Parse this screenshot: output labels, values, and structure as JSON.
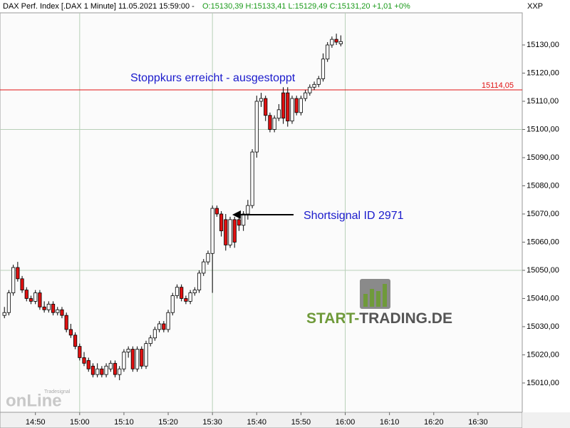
{
  "chart_data": {
    "type": "candlestick",
    "title": "DAX Perf. Index [.DAX  1 Minute] 11.05.2021 15:59:00 -",
    "subtitle": "O:15130,39 H:15133,41 L:15129,49 C:15131,20 +1,01 +0%",
    "y_label": "XXP",
    "up_color": "#ffffff",
    "down_color": "#e01010",
    "reference_line": {
      "value": 15114.05,
      "label": "15114,05",
      "color": "#e01010"
    },
    "annotations": [
      "Stoppkurs erreicht - ausgestoppt",
      "Shortsignal ID 2971"
    ],
    "watermarks": [
      "START-",
      "TRADING.DE",
      "Tradesignal",
      "onLine"
    ],
    "xlim": [
      "14:42",
      "16:40"
    ],
    "xticks": [
      "14:50",
      "15:00",
      "15:10",
      "15:20",
      "15:30",
      "15:40",
      "15:50",
      "16:00",
      "16:10",
      "16:20",
      "16:30"
    ],
    "x_grid": [
      "15:00",
      "15:30",
      "16:00"
    ],
    "ylim": [
      14999.6,
      15141.4
    ],
    "yticks": [
      {
        "value": 15010,
        "label": "15010,00"
      },
      {
        "value": 15020,
        "label": "15020,00"
      },
      {
        "value": 15030,
        "label": "15030,00"
      },
      {
        "value": 15040,
        "label": "15040,00"
      },
      {
        "value": 15050,
        "label": "15050,00"
      },
      {
        "value": 15060,
        "label": "15060,00"
      },
      {
        "value": 15070,
        "label": "15070,00"
      },
      {
        "value": 15080,
        "label": "15080,00"
      },
      {
        "value": 15090,
        "label": "15090,00"
      },
      {
        "value": 15100,
        "label": "15100,00"
      },
      {
        "value": 15110,
        "label": "15110,00"
      },
      {
        "value": 15120,
        "label": "15120,00"
      },
      {
        "value": 15130,
        "label": "15130,00"
      }
    ],
    "y_grid": [
      15050,
      15100
    ],
    "x": [
      "14:43",
      "14:44",
      "14:45",
      "14:46",
      "14:47",
      "14:48",
      "14:49",
      "14:50",
      "14:51",
      "14:52",
      "14:53",
      "14:54",
      "14:55",
      "14:56",
      "14:57",
      "14:58",
      "14:59",
      "15:00",
      "15:01",
      "15:02",
      "15:03",
      "15:04",
      "15:05",
      "15:06",
      "15:07",
      "15:08",
      "15:09",
      "15:10",
      "15:11",
      "15:12",
      "15:13",
      "15:14",
      "15:15",
      "15:16",
      "15:17",
      "15:18",
      "15:19",
      "15:20",
      "15:21",
      "15:22",
      "15:23",
      "15:24",
      "15:25",
      "15:26",
      "15:27",
      "15:28",
      "15:29",
      "15:30",
      "15:31",
      "15:32",
      "15:33",
      "15:34",
      "15:35",
      "15:36",
      "15:37",
      "15:38",
      "15:39",
      "15:40",
      "15:41",
      "15:42",
      "15:43",
      "15:44",
      "15:45",
      "15:46",
      "15:47",
      "15:48",
      "15:49",
      "15:50",
      "15:51",
      "15:52",
      "15:53",
      "15:54",
      "15:55",
      "15:56",
      "15:57",
      "15:58",
      "15:59"
    ],
    "open": [
      15034,
      15035,
      15042,
      15051,
      15047,
      15043,
      15040,
      15039,
      15042,
      15037,
      15036,
      15038,
      15035,
      15036,
      15034,
      15029,
      15027,
      15023,
      15019,
      15018,
      15016,
      15013,
      15015,
      15013,
      15015,
      15017,
      15013,
      15015,
      15021,
      15022,
      15015,
      15022,
      15016,
      15024,
      15026,
      15029,
      15031,
      15029,
      15035,
      15041,
      15044,
      15040,
      15039,
      15042,
      15043,
      15049,
      15053,
      15056,
      15072,
      15070,
      15068,
      15059,
      15068,
      15068,
      15066,
      15070,
      15073,
      15092,
      15110,
      15111,
      15105,
      15100,
      15104,
      15113,
      15113,
      15103,
      15111,
      15106,
      15111,
      15113,
      15115,
      15116,
      15118,
      15125,
      15130,
      15132,
      15130.39
    ],
    "high": [
      15037,
      15043,
      15052,
      15053,
      15048,
      15044,
      15041,
      15043,
      15043,
      15039,
      15039,
      15039,
      15037,
      15037,
      15035,
      15031,
      15028,
      15024,
      15021,
      15019,
      15017,
      15017,
      15016,
      15017,
      15018,
      15018,
      15016,
      15022,
      15023,
      15023,
      15023,
      15023,
      15025,
      15027,
      15030,
      15032,
      15032,
      15036,
      15042,
      15045,
      15045,
      15041,
      15043,
      15044,
      15050,
      15054,
      15057,
      15073,
      15073,
      15071,
      15070,
      15069,
      15069,
      15070,
      15071,
      15075,
      15093,
      15112,
      15113,
      15112,
      15106,
      15105,
      15109,
      15115,
      15115,
      15112,
      15112,
      15112,
      15114,
      15116,
      15117,
      15119,
      15127,
      15131,
      15133,
      15134,
      15133.41
    ],
    "low": [
      15033,
      15034,
      15041,
      15046,
      15042,
      15039,
      15038,
      15038,
      15036,
      15035,
      15035,
      15034,
      15034,
      15033,
      15028,
      15026,
      15022,
      15018,
      15016,
      15014,
      15012,
      15012,
      15012,
      15012,
      15014,
      15012,
      15011,
      15014,
      15019,
      15014,
      15014,
      15015,
      15015,
      15023,
      15025,
      15028,
      15028,
      15028,
      15034,
      15040,
      15039,
      15038,
      15038,
      15041,
      15042,
      15048,
      15052,
      15042,
      15069,
      15062,
      15057,
      15058,
      15058,
      15064,
      15064,
      15068,
      15072,
      15090,
      15108,
      15103,
      15099,
      15099,
      15103,
      15102,
      15101,
      15102,
      15105,
      15105,
      15110,
      15112,
      15114,
      15115,
      15117,
      15124,
      15129,
      15130,
      15129.49
    ],
    "close": [
      15035,
      15042,
      15051,
      15047,
      15043,
      15040,
      15039,
      15042,
      15037,
      15036,
      15038,
      15035,
      15036,
      15034,
      15029,
      15027,
      15023,
      15019,
      15017,
      15015,
      15013,
      15015,
      15013,
      15016,
      15017,
      15013,
      15015,
      15021,
      15022,
      15015,
      15022,
      15016,
      15024,
      15026,
      15029,
      15031,
      15029,
      15035,
      15041,
      15044,
      15040,
      15039,
      15042,
      15043,
      15049,
      15053,
      15056,
      15072,
      15070,
      15064,
      15059,
      15068,
      15060,
      15066,
      15070,
      15073,
      15092,
      15110,
      15111,
      15105,
      15100,
      15104,
      15107,
      15104,
      15103,
      15111,
      15106,
      15111,
      15113,
      15115,
      15116,
      15118,
      15125,
      15130,
      15132,
      15131,
      15131.2
    ]
  }
}
